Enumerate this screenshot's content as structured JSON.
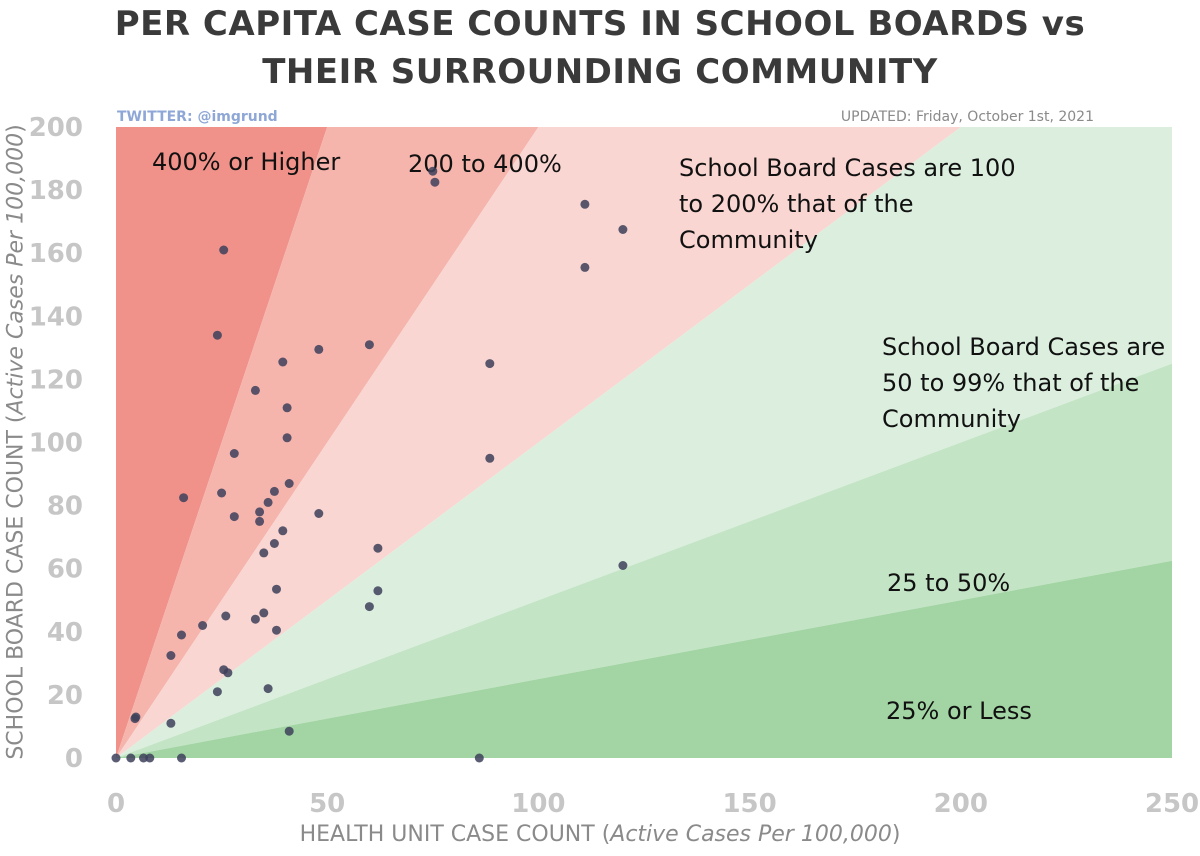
{
  "chart_data": {
    "type": "scatter",
    "title_line1": "PER CAPITA CASE COUNTS IN SCHOOL BOARDS vs",
    "title_line2": "THEIR SURROUNDING COMMUNITY",
    "credit": "TWITTER: @imgrund",
    "updated": "UPDATED: Friday, October 1st, 2021",
    "xlabel_main": "HEALTH UNIT CASE COUNT (",
    "xlabel_italic": "Active Cases Per 100,000",
    "xlabel_end": ")",
    "ylabel_main": "SCHOOL BOARD CASE COUNT (",
    "ylabel_italic": "Active Cases Per 100,000",
    "ylabel_end": ")",
    "xlim": [
      0,
      250
    ],
    "ylim": [
      0,
      200
    ],
    "xticks": [
      0,
      50,
      100,
      150,
      200,
      250
    ],
    "yticks": [
      0,
      20,
      40,
      60,
      80,
      100,
      120,
      140,
      160,
      180,
      200
    ],
    "regions": [
      {
        "label": "400% or Higher",
        "ratio_low": 4,
        "ratio_high": null,
        "color": "#f0928a"
      },
      {
        "label": "200 to 400%",
        "ratio_low": 2,
        "ratio_high": 4,
        "color": "#f5b5ad"
      },
      {
        "label": "School Board Cases are 100 to 200% that of the Community",
        "ratio_low": 1,
        "ratio_high": 2,
        "color": "#f9d6d1"
      },
      {
        "label": "School Board Cases are 50 to 99% that of the Community",
        "ratio_low": 0.5,
        "ratio_high": 1,
        "color": "#dcefdf"
      },
      {
        "label": "25 to 50%",
        "ratio_low": 0.25,
        "ratio_high": 0.5,
        "color": "#c4e4c6"
      },
      {
        "label": "25% or Less",
        "ratio_low": 0,
        "ratio_high": 0.25,
        "color": "#a2d5a3"
      }
    ],
    "region_text": {
      "r400": [
        "400% or Higher"
      ],
      "r200": [
        "200 to 400%"
      ],
      "r100": [
        "School Board Cases are 100",
        "to 200% that of the",
        "Community"
      ],
      "r50": [
        "School Board Cases are",
        "50 to 99% that of the",
        "Community"
      ],
      "r25": [
        "25 to 50%"
      ],
      "r0": [
        "25% or Less"
      ]
    },
    "points": [
      {
        "x": 0,
        "y": 0
      },
      {
        "x": 3.5,
        "y": 0
      },
      {
        "x": 6.5,
        "y": 0
      },
      {
        "x": 8,
        "y": 0
      },
      {
        "x": 15.5,
        "y": 0
      },
      {
        "x": 86,
        "y": 0
      },
      {
        "x": 4.5,
        "y": 12.5
      },
      {
        "x": 4.7,
        "y": 13
      },
      {
        "x": 13,
        "y": 11
      },
      {
        "x": 13,
        "y": 32.5
      },
      {
        "x": 15.5,
        "y": 39
      },
      {
        "x": 16,
        "y": 82.5
      },
      {
        "x": 20.5,
        "y": 42
      },
      {
        "x": 24,
        "y": 21
      },
      {
        "x": 24,
        "y": 134
      },
      {
        "x": 25,
        "y": 84
      },
      {
        "x": 25.5,
        "y": 161
      },
      {
        "x": 25.5,
        "y": 28
      },
      {
        "x": 26,
        "y": 45
      },
      {
        "x": 26.5,
        "y": 27
      },
      {
        "x": 28,
        "y": 96.5
      },
      {
        "x": 28,
        "y": 76.5
      },
      {
        "x": 33,
        "y": 116.5
      },
      {
        "x": 33,
        "y": 44
      },
      {
        "x": 34,
        "y": 75
      },
      {
        "x": 34,
        "y": 78
      },
      {
        "x": 35,
        "y": 65
      },
      {
        "x": 35,
        "y": 46
      },
      {
        "x": 36,
        "y": 81
      },
      {
        "x": 36,
        "y": 22
      },
      {
        "x": 37.5,
        "y": 84.5
      },
      {
        "x": 37.5,
        "y": 68
      },
      {
        "x": 38,
        "y": 53.5
      },
      {
        "x": 38,
        "y": 40.5
      },
      {
        "x": 39.5,
        "y": 125.5
      },
      {
        "x": 39.5,
        "y": 72
      },
      {
        "x": 40.5,
        "y": 111
      },
      {
        "x": 40.5,
        "y": 101.5
      },
      {
        "x": 41,
        "y": 87
      },
      {
        "x": 41,
        "y": 8.5
      },
      {
        "x": 48,
        "y": 129.5
      },
      {
        "x": 48,
        "y": 77.5
      },
      {
        "x": 60,
        "y": 131
      },
      {
        "x": 60,
        "y": 48
      },
      {
        "x": 62,
        "y": 66.5
      },
      {
        "x": 62,
        "y": 53
      },
      {
        "x": 75,
        "y": 186
      },
      {
        "x": 75.5,
        "y": 182.5
      },
      {
        "x": 88.5,
        "y": 125
      },
      {
        "x": 88.5,
        "y": 95
      },
      {
        "x": 111,
        "y": 175.5
      },
      {
        "x": 111,
        "y": 155.5
      },
      {
        "x": 120,
        "y": 167.5
      },
      {
        "x": 120,
        "y": 61
      }
    ],
    "colors": {
      "point": "#3d3f5a",
      "tick": "#c6c6c6"
    }
  }
}
